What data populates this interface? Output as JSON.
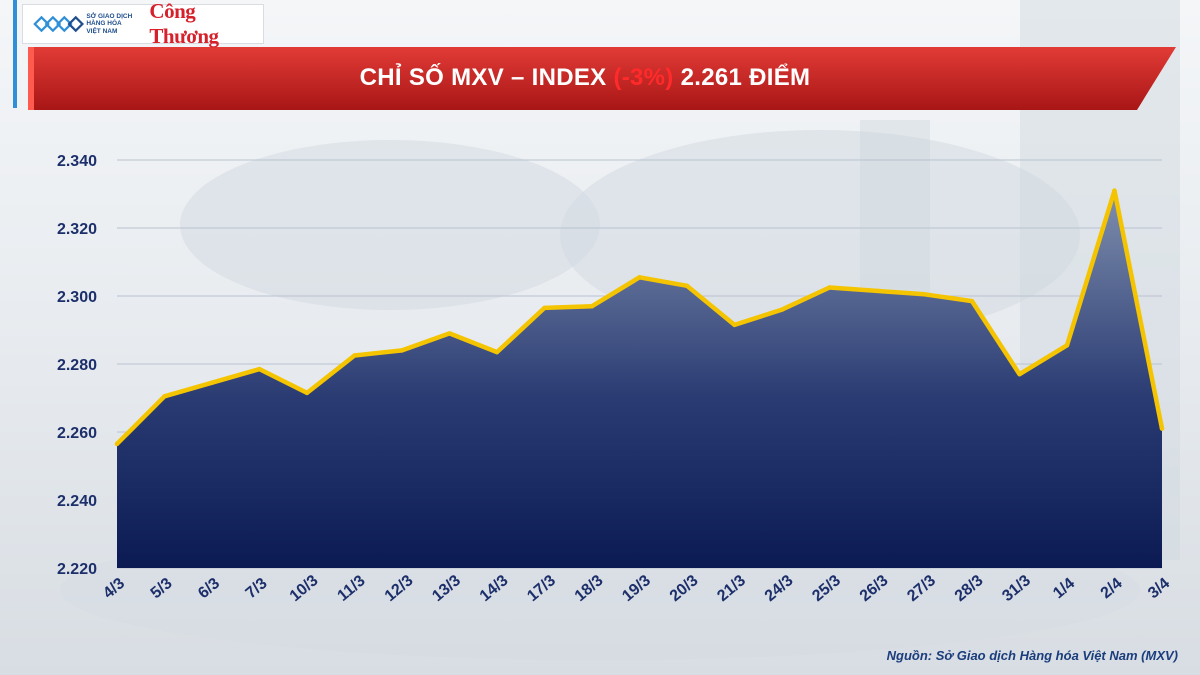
{
  "logo": {
    "org_line1": "SỞ GIAO DỊCH",
    "org_line2": "HÀNG HÓA",
    "org_line3": "VIỆT NAM",
    "brand": "Công Thương"
  },
  "title": {
    "prefix": "CHỈ SỐ MXV – INDEX ",
    "change": "(-3%)",
    "suffix": " 2.261 ĐIỂM"
  },
  "source": "Nguồn: Sở Giao dịch Hàng hóa Việt Nam (MXV)",
  "colors": {
    "line": "#f5c400",
    "fill_top": "#7f8fae",
    "fill_bottom": "#0b1a52",
    "axis_text": "#1c2f6a",
    "banner": "#c62828",
    "change": "#ff2a2a"
  },
  "chart_data": {
    "type": "area",
    "title": "CHỈ SỐ MXV – INDEX (-3%) 2.261 ĐIỂM",
    "x": [
      "4/3",
      "5/3",
      "6/3",
      "7/3",
      "10/3",
      "11/3",
      "12/3",
      "13/3",
      "14/3",
      "17/3",
      "18/3",
      "19/3",
      "20/3",
      "21/3",
      "24/3",
      "25/3",
      "26/3",
      "27/3",
      "28/3",
      "31/3",
      "1/4",
      "2/4",
      "3/4"
    ],
    "series": [
      {
        "values": [
          2256.5,
          2270.5,
          2274.5,
          2278.5,
          2271.5,
          2282.5,
          2284,
          2289,
          2283.5,
          2296.5,
          2297,
          2305.5,
          2303,
          2291.5,
          2296,
          2302.5,
          2301.5,
          2300.5,
          2298.5,
          2277,
          2285.5,
          2331,
          2261
        ]
      }
    ],
    "ylim": [
      2220,
      2340
    ],
    "yticks": [
      2220,
      2240,
      2260,
      2280,
      2300,
      2320,
      2340
    ],
    "ytick_labels": [
      "2.220",
      "2.240",
      "2.260",
      "2.280",
      "2.300",
      "2.320",
      "2.340"
    ],
    "grid": true,
    "xlabel": "",
    "ylabel": ""
  }
}
